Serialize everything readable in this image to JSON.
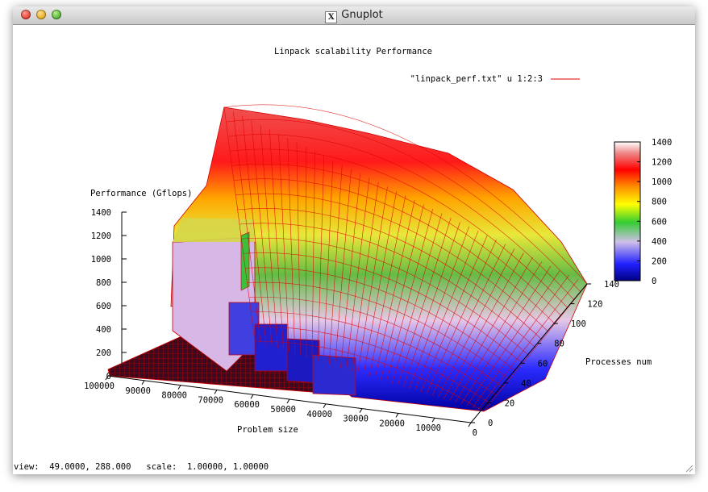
{
  "window": {
    "title": "Gnuplot",
    "icon": "x11-icon",
    "icon_glyph": "X"
  },
  "chart_data": {
    "type": "surface3d",
    "title": "Linpack scalability Performance",
    "zlabel": "Performance (Gflops)",
    "xlabel": "Problem size",
    "ylabel": "Processes num",
    "legend_entry": "\"linpack_perf.txt\" u 1:2:3",
    "legend_color": "#e00000",
    "x_ticks": [
      "100000",
      "90000",
      "80000",
      "70000",
      "60000",
      "50000",
      "40000",
      "30000",
      "20000",
      "10000",
      "0"
    ],
    "y_ticks": [
      "0",
      "20",
      "40",
      "60",
      "80",
      "100",
      "120",
      "140"
    ],
    "z_ticks": [
      "0",
      "200",
      "400",
      "600",
      "800",
      "1000",
      "1200",
      "1400"
    ],
    "colorbox_ticks": [
      "0",
      "200",
      "400",
      "600",
      "800",
      "1000",
      "1200",
      "1400"
    ],
    "xlim": [
      0,
      100000
    ],
    "ylim": [
      0,
      140
    ],
    "zlim": [
      0,
      1400
    ],
    "cblim": [
      0,
      1400
    ],
    "palette": [
      "#00008b",
      "#1a1aff",
      "#e0e0e0",
      "#2ca02c",
      "#ffff00",
      "#ff8c00",
      "#ff0000",
      "#ffffff"
    ],
    "mesh_color": "#dd0000",
    "surface_samples": [
      {
        "x": 10000,
        "y": 0,
        "z": 0
      },
      {
        "x": 10000,
        "y": 140,
        "z": 250
      },
      {
        "x": 100000,
        "y": 0,
        "z": 0
      },
      {
        "x": 100000,
        "y": 140,
        "z": 1380
      }
    ]
  },
  "status": {
    "view_label": "view:",
    "view_values": "49.0000, 288.000",
    "scale_label": "scale:",
    "scale_values": "1.00000, 1.00000"
  }
}
